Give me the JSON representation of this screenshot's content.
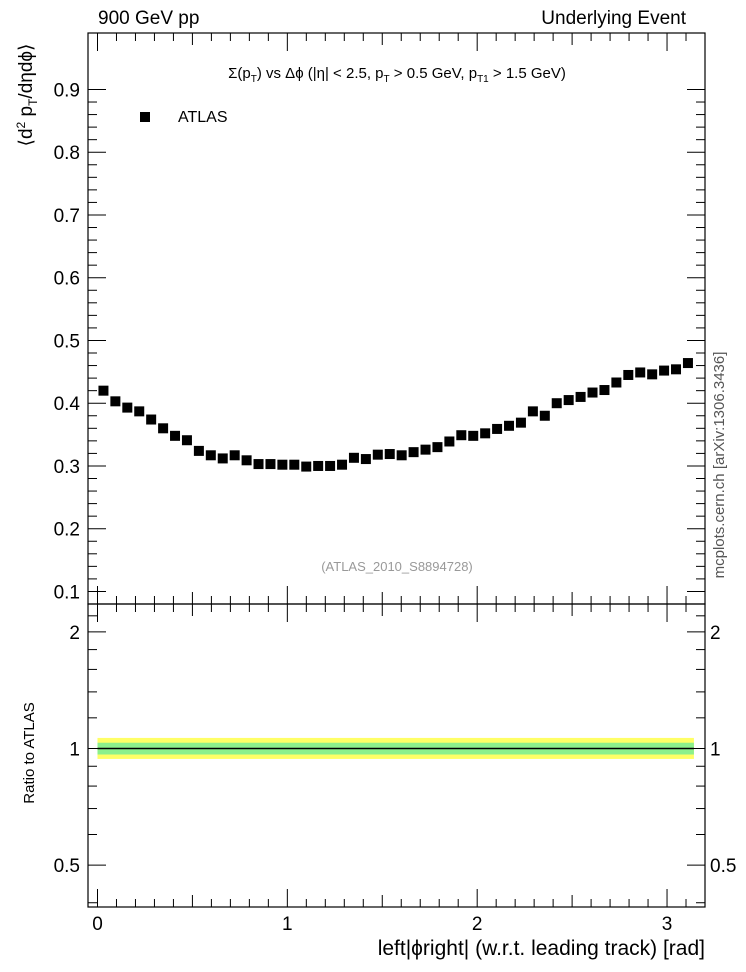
{
  "header": {
    "left": "900 GeV pp",
    "right": "Underlying Event"
  },
  "side_label": "mcplots.cern.ch [arXiv:1306.3436]",
  "chart_data": [
    {
      "type": "scatter",
      "title_parts": {
        "sigma": "Σ(p",
        "sub_T1": "T",
        "mid": ") vs Δϕ (|η| < 2.5, p",
        "sub_T2": "T",
        "mid2": " > 0.5 GeV, p",
        "sub_T3": "T1",
        "tail": " > 1.5 GeV)"
      },
      "ylabel": {
        "open": "⟨d",
        "sup": "2",
        "p": " p",
        "sub": "T",
        "rest": "/dηdϕ⟩"
      },
      "legend": [
        {
          "name": "ATLAS",
          "marker": "square",
          "color": "#000000",
          "position": "top-left"
        }
      ],
      "watermark": "(ATLAS_2010_S8894728)",
      "xlim": [
        -0.05,
        3.2
      ],
      "ylim": [
        0.08,
        0.99
      ],
      "yticks": [
        0.1,
        0.2,
        0.3,
        0.4,
        0.5,
        0.6,
        0.7,
        0.8,
        0.9
      ],
      "ytick_labels": [
        "0.1",
        "0.2",
        "0.3",
        "0.4",
        "0.5",
        "0.6",
        "0.7",
        "0.8",
        "0.9"
      ],
      "series": [
        {
          "name": "ATLAS",
          "x": [
            0.0314,
            0.0942,
            0.1571,
            0.2199,
            0.2827,
            0.3456,
            0.4084,
            0.4712,
            0.5341,
            0.5969,
            0.6597,
            0.7226,
            0.7854,
            0.8482,
            0.9111,
            0.9739,
            1.0367,
            1.0996,
            1.1624,
            1.2252,
            1.2881,
            1.3509,
            1.4137,
            1.4765,
            1.5394,
            1.6022,
            1.665,
            1.7279,
            1.7907,
            1.8535,
            1.9164,
            1.9792,
            2.042,
            2.1049,
            2.1677,
            2.2305,
            2.2934,
            2.3562,
            2.419,
            2.4819,
            2.5447,
            2.6075,
            2.6704,
            2.7332,
            2.796,
            2.8588,
            2.9217,
            2.9845,
            3.0473,
            3.1102
          ],
          "y": [
            0.42,
            0.403,
            0.393,
            0.387,
            0.374,
            0.36,
            0.348,
            0.341,
            0.324,
            0.317,
            0.312,
            0.317,
            0.309,
            0.303,
            0.303,
            0.302,
            0.302,
            0.299,
            0.3,
            0.3,
            0.302,
            0.313,
            0.311,
            0.318,
            0.319,
            0.317,
            0.322,
            0.326,
            0.33,
            0.339,
            0.349,
            0.348,
            0.352,
            0.359,
            0.364,
            0.369,
            0.387,
            0.38,
            0.4,
            0.405,
            0.41,
            0.417,
            0.421,
            0.433,
            0.445,
            0.449,
            0.446,
            0.452,
            0.454,
            0.464
          ]
        }
      ]
    },
    {
      "type": "line",
      "ylabel": "Ratio to ATLAS",
      "xlabel": "left|ϕright| (w.r.t. leading track) [rad]",
      "xlim": [
        -0.05,
        3.2
      ],
      "xticks": [
        0,
        1,
        2,
        3
      ],
      "xtick_labels": [
        "0",
        "1",
        "2",
        "3"
      ],
      "ylim": [
        0.39,
        2.36
      ],
      "yscale": "log",
      "yticks": [
        0.5,
        1,
        2
      ],
      "ytick_labels": [
        "0.5",
        "1",
        "2"
      ],
      "bands": [
        {
          "name": "total uncertainty",
          "low": 0.94,
          "high": 1.065,
          "color": "#ffff66"
        },
        {
          "name": "stat uncertainty",
          "low": 0.965,
          "high": 1.035,
          "color": "#8cf08c"
        }
      ],
      "series": [
        {
          "name": "ATLAS",
          "x": [
            0.0,
            3.1416
          ],
          "values": [
            1,
            1
          ],
          "color": "#000000"
        }
      ]
    }
  ]
}
